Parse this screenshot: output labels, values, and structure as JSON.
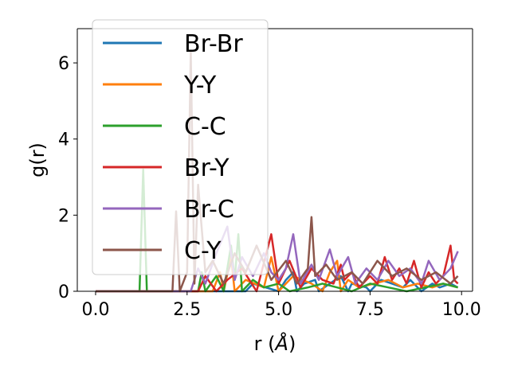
{
  "chart_data": {
    "type": "line",
    "xlabel": "r (",
    "xlabel_unit": "Å",
    "xlabel_close": ")",
    "ylabel": "g(r)",
    "xlim": [
      -0.5,
      10.3
    ],
    "ylim": [
      0,
      6.9
    ],
    "x_ticks": [
      0.0,
      2.5,
      5.0,
      7.5,
      10.0
    ],
    "x_tick_labels": [
      "0.0",
      "2.5",
      "5.0",
      "7.5",
      "10.0"
    ],
    "y_ticks": [
      0,
      2,
      4,
      6
    ],
    "y_tick_labels": [
      "0",
      "2",
      "4",
      "6"
    ],
    "grid": false,
    "legend_position": "upper-left",
    "series": [
      {
        "name": "Br-Br",
        "color": "#1f77b4",
        "x": [
          0,
          4.1,
          4.3,
          5.0,
          5.2,
          5.4,
          5.5,
          5.7,
          6.0,
          6.1,
          6.4,
          6.7,
          6.9,
          7.0,
          7.4,
          7.5,
          7.8,
          8.1,
          8.4,
          8.6,
          8.9,
          9.2,
          9.4,
          9.7,
          9.9
        ],
        "y": [
          0,
          0,
          0.2,
          0,
          0.3,
          0.5,
          0,
          0.2,
          0.3,
          0,
          0.2,
          0.4,
          0,
          0.2,
          0.1,
          0,
          0.3,
          0.2,
          0.1,
          0.3,
          0,
          0.2,
          0.1,
          0.2,
          0.1
        ]
      },
      {
        "name": "Y-Y",
        "color": "#ff7f0e",
        "x": [
          0,
          3.2,
          3.4,
          3.5,
          3.7,
          3.8,
          4.1,
          4.6,
          4.8,
          5.0,
          5.4,
          5.9,
          6.2,
          6.4,
          6.6,
          6.7,
          6.9,
          7.2,
          7.6,
          8.0,
          8.4,
          8.8,
          9.2,
          9.5,
          9.9
        ],
        "y": [
          0,
          0,
          0.5,
          0,
          0.9,
          0,
          0.3,
          0.1,
          0.9,
          0,
          0.4,
          0.2,
          0,
          0.5,
          0.8,
          0,
          0.3,
          0.1,
          0.2,
          0.3,
          0.1,
          0.2,
          0.1,
          0.2,
          0.1
        ]
      },
      {
        "name": "C-C",
        "color": "#2ca02c",
        "x": [
          0,
          1.2,
          1.3,
          1.4,
          2.8,
          2.9,
          3.0,
          3.3,
          3.5,
          3.7,
          3.8,
          3.9,
          4.0,
          4.3,
          4.6,
          5.0,
          5.3,
          5.8,
          6.2,
          6.6,
          7.0,
          7.5,
          8.0,
          8.5,
          9.0,
          9.5,
          9.9
        ],
        "y": [
          0,
          0,
          3.2,
          0,
          0,
          0.5,
          0,
          0.4,
          0,
          1.2,
          0.3,
          1.5,
          0,
          0.3,
          0.1,
          0.2,
          0,
          0.1,
          0.2,
          0.1,
          0,
          0.2,
          0.1,
          0,
          0.1,
          0.2,
          0.1
        ]
      },
      {
        "name": "Br-Y",
        "color": "#d62728",
        "x": [
          0,
          2.8,
          3.0,
          3.3,
          3.6,
          4.0,
          4.4,
          4.8,
          5.0,
          5.3,
          5.6,
          5.9,
          6.2,
          6.5,
          6.7,
          6.8,
          7.0,
          7.2,
          7.5,
          7.7,
          7.9,
          8.1,
          8.3,
          8.5,
          8.7,
          8.9,
          9.1,
          9.3,
          9.5,
          9.7,
          9.8,
          9.9
        ],
        "y": [
          0,
          0,
          0.4,
          0,
          0.3,
          0.6,
          0,
          1.5,
          0.2,
          0.8,
          0.1,
          0.6,
          0.3,
          0.2,
          0.7,
          0.3,
          0.5,
          0.1,
          0.4,
          0.2,
          0.9,
          0.3,
          0.6,
          0.2,
          0.8,
          0.1,
          0.5,
          0.2,
          0.4,
          1.2,
          0.3,
          0.2
        ]
      },
      {
        "name": "Br-C",
        "color": "#9467bd",
        "x": [
          0,
          2.6,
          2.8,
          3.0,
          3.3,
          3.6,
          3.8,
          4.0,
          4.3,
          4.6,
          4.8,
          5.0,
          5.2,
          5.4,
          5.6,
          5.9,
          6.1,
          6.4,
          6.6,
          6.9,
          7.1,
          7.4,
          7.7,
          8.0,
          8.3,
          8.6,
          8.9,
          9.1,
          9.4,
          9.7,
          9.9
        ],
        "y": [
          0,
          0,
          0.6,
          0.2,
          1.0,
          1.7,
          0.3,
          0.9,
          0.4,
          1.0,
          0.5,
          0.3,
          0.6,
          1.5,
          0.2,
          0.7,
          0.3,
          1.1,
          0.4,
          0.9,
          0.2,
          0.6,
          0.3,
          0.8,
          0.4,
          0.6,
          0.2,
          0.8,
          0.3,
          0.6,
          1.05
        ]
      },
      {
        "name": "C-Y",
        "color": "#8c564b",
        "x": [
          0,
          2.1,
          2.2,
          2.3,
          2.5,
          2.6,
          2.7,
          2.8,
          3.0,
          3.2,
          3.5,
          3.8,
          4.1,
          4.4,
          4.8,
          5.2,
          5.5,
          5.8,
          5.9,
          6.0,
          6.3,
          6.6,
          7.0,
          7.3,
          7.7,
          8.1,
          8.5,
          8.9,
          9.3,
          9.7,
          9.9
        ],
        "y": [
          0,
          0,
          2.1,
          0,
          0.5,
          6.3,
          0.2,
          2.8,
          0.5,
          0.8,
          0.2,
          1.0,
          0.5,
          1.2,
          0.3,
          0.8,
          0.2,
          0.6,
          1.95,
          0.4,
          0.7,
          0.3,
          0.5,
          0.2,
          0.8,
          0.4,
          0.6,
          0.3,
          0.5,
          0.2,
          0.4
        ]
      }
    ]
  }
}
